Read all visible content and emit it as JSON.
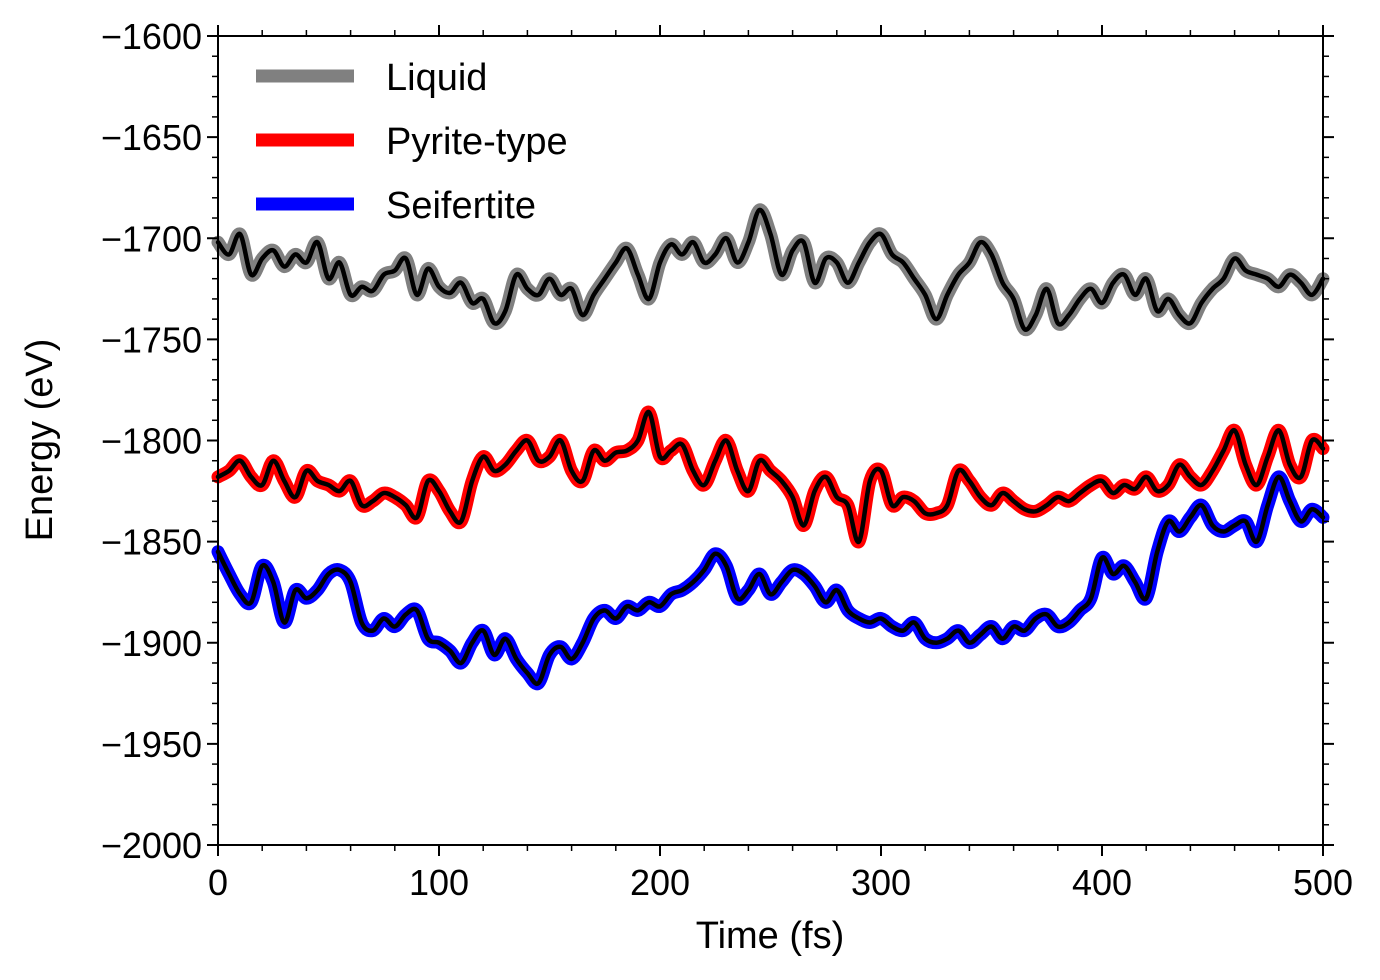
{
  "chart_data": {
    "type": "line",
    "title": "",
    "xlabel": "Time (fs)",
    "ylabel": "Energy (eV)",
    "xlim": [
      0,
      500
    ],
    "ylim": [
      -2000,
      -1600
    ],
    "xticks": [
      0,
      100,
      200,
      300,
      400,
      500
    ],
    "yticks": [
      -2000,
      -1950,
      -1900,
      -1850,
      -1800,
      -1750,
      -1700,
      -1650,
      -1600
    ],
    "xtick_labels": [
      "0",
      "100",
      "200",
      "300",
      "400",
      "500"
    ],
    "ytick_labels": [
      "−2000",
      "−1950",
      "−1900",
      "−1850",
      "−1800",
      "−1750",
      "−1700",
      "−1650",
      "−1600"
    ],
    "legend_position": "top-left",
    "overlay_color": "#000000",
    "series": [
      {
        "name": "Liquid",
        "color": "#808080",
        "x": [
          0,
          5,
          10,
          15,
          20,
          25,
          30,
          35,
          40,
          45,
          50,
          55,
          60,
          65,
          70,
          75,
          80,
          85,
          90,
          95,
          100,
          105,
          110,
          115,
          120,
          125,
          130,
          135,
          140,
          145,
          150,
          155,
          160,
          165,
          170,
          175,
          180,
          185,
          190,
          195,
          200,
          205,
          210,
          215,
          220,
          225,
          230,
          235,
          240,
          245,
          250,
          255,
          260,
          265,
          270,
          275,
          280,
          285,
          290,
          295,
          300,
          305,
          310,
          315,
          320,
          325,
          330,
          335,
          340,
          345,
          350,
          355,
          360,
          365,
          370,
          375,
          380,
          385,
          390,
          395,
          400,
          405,
          410,
          415,
          420,
          425,
          430,
          435,
          440,
          445,
          450,
          455,
          460,
          465,
          470,
          475,
          480,
          485,
          490,
          495,
          500
        ],
        "values": [
          -1702,
          -1708,
          -1698,
          -1718,
          -1710,
          -1706,
          -1714,
          -1708,
          -1712,
          -1702,
          -1720,
          -1712,
          -1728,
          -1724,
          -1726,
          -1718,
          -1716,
          -1710,
          -1728,
          -1715,
          -1724,
          -1727,
          -1722,
          -1732,
          -1730,
          -1742,
          -1736,
          -1718,
          -1725,
          -1728,
          -1720,
          -1728,
          -1725,
          -1738,
          -1728,
          -1720,
          -1712,
          -1705,
          -1718,
          -1730,
          -1712,
          -1703,
          -1708,
          -1702,
          -1712,
          -1708,
          -1700,
          -1712,
          -1702,
          -1686,
          -1698,
          -1718,
          -1706,
          -1702,
          -1722,
          -1710,
          -1712,
          -1722,
          -1712,
          -1702,
          -1698,
          -1708,
          -1712,
          -1720,
          -1728,
          -1740,
          -1728,
          -1718,
          -1712,
          -1702,
          -1708,
          -1722,
          -1730,
          -1745,
          -1738,
          -1725,
          -1742,
          -1738,
          -1730,
          -1725,
          -1732,
          -1722,
          -1718,
          -1728,
          -1720,
          -1736,
          -1730,
          -1738,
          -1742,
          -1732,
          -1725,
          -1720,
          -1710,
          -1716,
          -1718,
          -1720,
          -1724,
          -1718,
          -1722,
          -1728,
          -1720
        ]
      },
      {
        "name": "Pyrite-type",
        "color": "#ff0000",
        "x": [
          0,
          5,
          10,
          15,
          20,
          25,
          30,
          35,
          40,
          45,
          50,
          55,
          60,
          65,
          70,
          75,
          80,
          85,
          90,
          95,
          100,
          105,
          110,
          115,
          120,
          125,
          130,
          135,
          140,
          145,
          150,
          155,
          160,
          165,
          170,
          175,
          180,
          185,
          190,
          195,
          200,
          205,
          210,
          215,
          220,
          225,
          230,
          235,
          240,
          245,
          250,
          255,
          260,
          265,
          270,
          275,
          280,
          285,
          290,
          295,
          300,
          305,
          310,
          315,
          320,
          325,
          330,
          335,
          340,
          345,
          350,
          355,
          360,
          365,
          370,
          375,
          380,
          385,
          390,
          395,
          400,
          405,
          410,
          415,
          420,
          425,
          430,
          435,
          440,
          445,
          450,
          455,
          460,
          465,
          470,
          475,
          480,
          485,
          490,
          495,
          500
        ],
        "values": [
          -1818,
          -1815,
          -1810,
          -1818,
          -1822,
          -1810,
          -1820,
          -1828,
          -1815,
          -1820,
          -1822,
          -1825,
          -1820,
          -1832,
          -1830,
          -1826,
          -1828,
          -1832,
          -1838,
          -1820,
          -1825,
          -1835,
          -1840,
          -1820,
          -1808,
          -1815,
          -1812,
          -1805,
          -1800,
          -1810,
          -1808,
          -1800,
          -1815,
          -1820,
          -1805,
          -1810,
          -1806,
          -1805,
          -1800,
          -1786,
          -1808,
          -1805,
          -1802,
          -1815,
          -1822,
          -1810,
          -1800,
          -1815,
          -1825,
          -1810,
          -1815,
          -1820,
          -1828,
          -1842,
          -1825,
          -1818,
          -1828,
          -1832,
          -1850,
          -1820,
          -1815,
          -1832,
          -1828,
          -1830,
          -1836,
          -1836,
          -1832,
          -1815,
          -1820,
          -1828,
          -1832,
          -1826,
          -1830,
          -1834,
          -1835,
          -1832,
          -1828,
          -1830,
          -1826,
          -1822,
          -1820,
          -1826,
          -1822,
          -1824,
          -1818,
          -1825,
          -1822,
          -1812,
          -1818,
          -1822,
          -1815,
          -1805,
          -1795,
          -1812,
          -1822,
          -1808,
          -1795,
          -1812,
          -1818,
          -1800,
          -1804
        ]
      },
      {
        "name": "Seifertite",
        "color": "#0000ff",
        "x": [
          0,
          5,
          10,
          15,
          20,
          25,
          30,
          35,
          40,
          45,
          50,
          55,
          60,
          65,
          70,
          75,
          80,
          85,
          90,
          95,
          100,
          105,
          110,
          115,
          120,
          125,
          130,
          135,
          140,
          145,
          150,
          155,
          160,
          165,
          170,
          175,
          180,
          185,
          190,
          195,
          200,
          205,
          210,
          215,
          220,
          225,
          230,
          235,
          240,
          245,
          250,
          255,
          260,
          265,
          270,
          275,
          280,
          285,
          290,
          295,
          300,
          305,
          310,
          315,
          320,
          325,
          330,
          335,
          340,
          345,
          350,
          355,
          360,
          365,
          370,
          375,
          380,
          385,
          390,
          395,
          400,
          405,
          410,
          415,
          420,
          425,
          430,
          435,
          440,
          445,
          450,
          455,
          460,
          465,
          470,
          475,
          480,
          485,
          490,
          495,
          500
        ],
        "values": [
          -1855,
          -1866,
          -1876,
          -1880,
          -1862,
          -1870,
          -1890,
          -1874,
          -1878,
          -1874,
          -1866,
          -1864,
          -1870,
          -1890,
          -1894,
          -1888,
          -1892,
          -1886,
          -1884,
          -1898,
          -1900,
          -1904,
          -1910,
          -1900,
          -1894,
          -1906,
          -1898,
          -1908,
          -1915,
          -1920,
          -1906,
          -1902,
          -1908,
          -1900,
          -1888,
          -1884,
          -1888,
          -1882,
          -1884,
          -1880,
          -1882,
          -1876,
          -1874,
          -1870,
          -1864,
          -1856,
          -1862,
          -1878,
          -1874,
          -1866,
          -1876,
          -1870,
          -1864,
          -1866,
          -1872,
          -1880,
          -1874,
          -1884,
          -1888,
          -1890,
          -1888,
          -1892,
          -1894,
          -1890,
          -1898,
          -1900,
          -1898,
          -1894,
          -1900,
          -1896,
          -1892,
          -1898,
          -1892,
          -1894,
          -1888,
          -1886,
          -1892,
          -1890,
          -1884,
          -1878,
          -1858,
          -1866,
          -1862,
          -1870,
          -1878,
          -1855,
          -1840,
          -1845,
          -1838,
          -1832,
          -1842,
          -1845,
          -1842,
          -1840,
          -1850,
          -1832,
          -1818,
          -1830,
          -1840,
          -1834,
          -1838
        ]
      }
    ]
  }
}
